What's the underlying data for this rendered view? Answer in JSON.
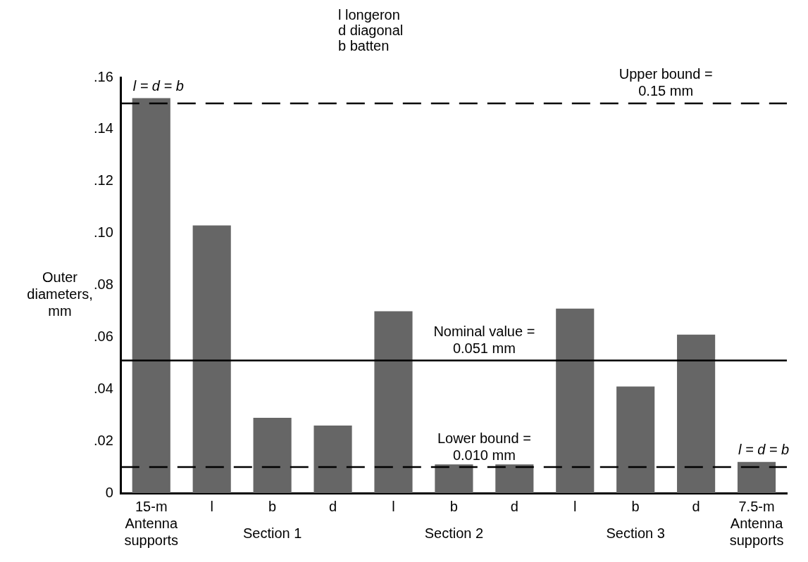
{
  "chart_data": {
    "type": "bar",
    "ylabel": "Outer\ndiameters,\nmm",
    "categories": [
      "15-m\nAntenna\nsupports",
      "l",
      "b",
      "d",
      "l",
      "b",
      "d",
      "l",
      "b",
      "d",
      "7.5-m\nAntenna\nsupports"
    ],
    "values": [
      0.152,
      0.103,
      0.029,
      0.026,
      0.07,
      0.011,
      0.011,
      0.071,
      0.041,
      0.061,
      0.012
    ],
    "color": "#666666",
    "ylim": [
      0,
      0.16
    ],
    "yticks": [
      {
        "value": 0,
        "label": "0"
      },
      {
        "value": 0.02,
        "label": ".02"
      },
      {
        "value": 0.04,
        "label": ".04"
      },
      {
        "value": 0.06,
        "label": ".06"
      },
      {
        "value": 0.08,
        "label": ".08"
      },
      {
        "value": 0.1,
        "label": ".10"
      },
      {
        "value": 0.12,
        "label": ".12"
      },
      {
        "value": 0.14,
        "label": ".14"
      },
      {
        "value": 0.16,
        "label": ".16"
      }
    ],
    "grid": false,
    "legend": false,
    "ref_lines": [
      {
        "axis": "y",
        "value": 0.15,
        "label": "Upper bound =\n0.15 mm",
        "line_style": "dashed"
      },
      {
        "axis": "y",
        "value": 0.051,
        "label": "Nominal value =\n0.051 mm",
        "line_style": "solid"
      },
      {
        "axis": "y",
        "value": 0.01,
        "label": "Lower bound =\n0.010 mm",
        "line_style": "dashed"
      }
    ],
    "annotations": [
      "l longeron\nd diagonal\nb batten",
      "Section 1",
      "Section 2",
      "Section 3",
      {
        "text": "l = d = b",
        "x": "15-m\nAntenna\nsupports",
        "y": 0.152
      },
      {
        "text": "l = d = b",
        "x": "7.5-m\nAntenna\nsupports",
        "y": 0.012
      }
    ]
  }
}
